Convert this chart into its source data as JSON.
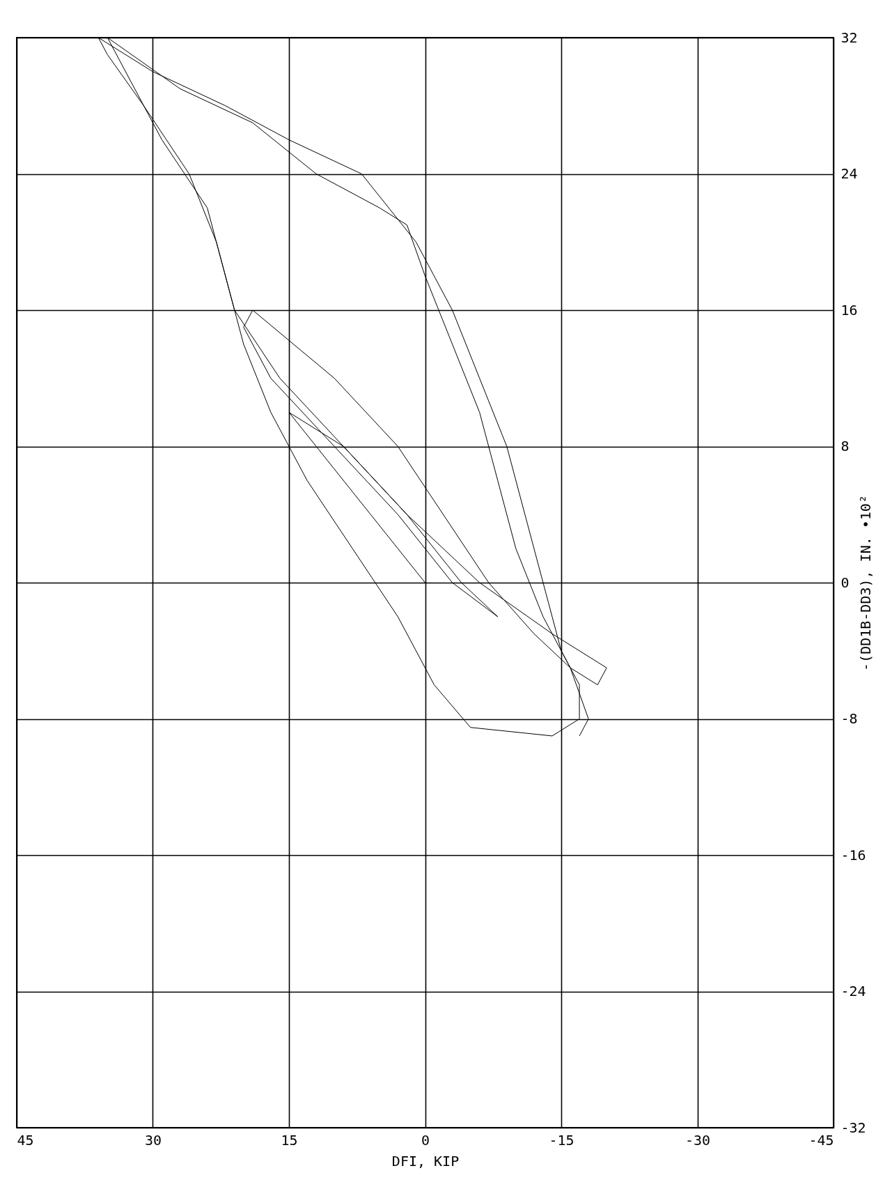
{
  "chart_data": {
    "type": "line",
    "xlabel": "DFI, KIP",
    "ylabel": "-(DD1B-DD3), IN. •10²",
    "x": [
      0,
      6,
      12,
      15,
      9,
      2,
      -4,
      -8,
      -3,
      3,
      10,
      17,
      20,
      19,
      10,
      3,
      -2,
      -7,
      -12,
      -16,
      -19,
      -20,
      -14,
      -6,
      2,
      9,
      16,
      21,
      23,
      26,
      31,
      35,
      36,
      30,
      22,
      15,
      7,
      1,
      -3,
      -6,
      -9,
      -11,
      -13,
      -15,
      -17,
      -17,
      -14,
      -5,
      -1,
      3,
      8,
      13,
      17,
      20,
      22,
      24,
      29,
      33,
      35,
      27,
      19,
      12,
      5,
      2,
      0,
      -3,
      -6,
      -8,
      -10,
      -13,
      -16,
      -18,
      -17
    ],
    "values": [
      0,
      4,
      8,
      10,
      8,
      4,
      0,
      -2,
      0,
      4,
      8,
      12,
      15,
      16,
      12,
      8,
      4,
      0,
      -3,
      -5,
      -6,
      -5,
      -3,
      0,
      4,
      8,
      12,
      16,
      20,
      24,
      28,
      31,
      32,
      30,
      28,
      26,
      24,
      20,
      16,
      12,
      8,
      4,
      0,
      -4,
      -6,
      -8,
      -9,
      -8.5,
      -6,
      -2,
      2,
      6,
      10,
      14,
      18,
      22,
      26,
      30,
      32,
      29,
      27,
      24,
      22,
      21,
      18,
      14,
      10,
      6,
      2,
      -2,
      -5,
      -8,
      -9
    ],
    "color": "#000000",
    "xlim": [
      45,
      -45
    ],
    "xticks": [
      45,
      30,
      15,
      0,
      -15,
      -30,
      -45
    ],
    "ylim": [
      -32,
      32
    ],
    "yticks": [
      -32,
      -24,
      -16,
      -8,
      0,
      8,
      16,
      24,
      32
    ],
    "grid": true
  }
}
